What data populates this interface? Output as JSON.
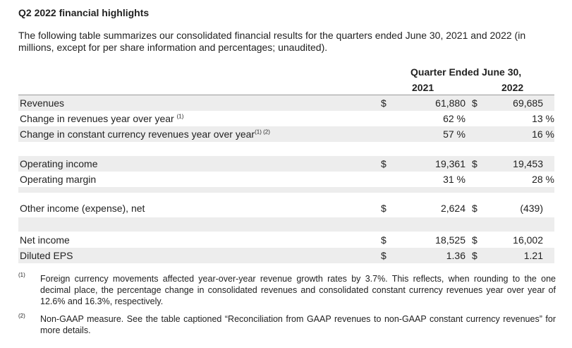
{
  "title": "Q2 2022 financial highlights",
  "intro": "The following table summarizes our consolidated financial results for the quarters ended June 30, 2021 and 2022 (in millions, except for per share information and percentages; unaudited).",
  "header": {
    "period": "Quarter Ended June 30,",
    "col_2021": "2021",
    "col_2022": "2022"
  },
  "rows": [
    {
      "label": "Revenues",
      "sup": "",
      "cur1": "$",
      "v2021": "61,880",
      "cur2": "$",
      "v2022": "69,685"
    },
    {
      "label": "Change in revenues year over year",
      "sup": "(1)",
      "cur1": "",
      "v2021": "62 %",
      "cur2": "",
      "v2022": "13 %"
    },
    {
      "label": "Change in constant currency revenues year over year",
      "sup": "(1) (2)",
      "cur1": "",
      "v2021": "57 %",
      "cur2": "",
      "v2022": "16 %"
    },
    {
      "label": "Operating income",
      "sup": "",
      "cur1": "$",
      "v2021": "19,361",
      "cur2": "$",
      "v2022": "19,453"
    },
    {
      "label": "Operating margin",
      "sup": "",
      "cur1": "",
      "v2021": "31 %",
      "cur2": "",
      "v2022": "28 %"
    },
    {
      "label": "Other income (expense), net",
      "sup": "",
      "cur1": "$",
      "v2021": "2,624",
      "cur2": "$",
      "v2022": "(439)"
    },
    {
      "label": "Net income",
      "sup": "",
      "cur1": "$",
      "v2021": "18,525",
      "cur2": "$",
      "v2022": "16,002"
    },
    {
      "label": "Diluted EPS",
      "sup": "",
      "cur1": "$",
      "v2021": "1.36",
      "cur2": "$",
      "v2022": "1.21"
    }
  ],
  "footnotes": [
    {
      "mark": "(1)",
      "text": "Foreign currency movements affected year-over-year revenue growth rates by 3.7%. This reflects, when rounding to the one decimal place, the percentage change in consolidated revenues and consolidated constant currency revenues year over year of 12.6% and 16.3%, respectively."
    },
    {
      "mark": "(2)",
      "text": "Non-GAAP measure. See the table captioned “Reconciliation from GAAP revenues to non-GAAP constant currency revenues” for more details."
    }
  ]
}
